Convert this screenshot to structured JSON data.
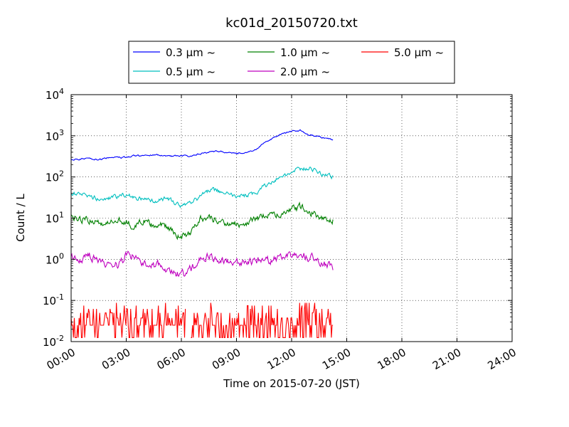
{
  "chart_data": {
    "type": "line",
    "title": "kc01d_20150720.txt",
    "xlabel": "Time on 2015-07-20 (JST)",
    "ylabel": "Count / L",
    "y_scale": "log",
    "ylim": [
      0.01,
      10000
    ],
    "xlim": [
      "00:00",
      "24:00"
    ],
    "x_ticks": [
      "00:00",
      "03:00",
      "06:00",
      "09:00",
      "12:00",
      "15:00",
      "18:00",
      "21:00",
      "24:00"
    ],
    "y_ticks": [
      {
        "base": "10",
        "exp": "-2",
        "value": 0.01
      },
      {
        "base": "10",
        "exp": "-1",
        "value": 0.1
      },
      {
        "base": "10",
        "exp": "0",
        "value": 1
      },
      {
        "base": "10",
        "exp": "1",
        "value": 10
      },
      {
        "base": "10",
        "exp": "2",
        "value": 100
      },
      {
        "base": "10",
        "exp": "3",
        "value": 1000
      },
      {
        "base": "10",
        "exp": "4",
        "value": 10000
      }
    ],
    "grid": true,
    "legend_position": "top",
    "series": [
      {
        "name": "0.3 μm ~",
        "color": "#0000ff",
        "x": [
          "00:00",
          "00:30",
          "01:00",
          "01:30",
          "02:00",
          "02:30",
          "03:00",
          "03:30",
          "04:00",
          "04:30",
          "05:00",
          "05:30",
          "06:00",
          "06:30",
          "07:00",
          "07:30",
          "08:00",
          "08:30",
          "09:00",
          "09:30",
          "10:00",
          "10:30",
          "11:00",
          "11:30",
          "12:00",
          "12:30",
          "13:00",
          "13:30",
          "14:00",
          "14:15"
        ],
        "values": [
          260,
          270,
          280,
          260,
          290,
          300,
          300,
          330,
          320,
          350,
          330,
          320,
          330,
          320,
          360,
          400,
          430,
          400,
          370,
          380,
          460,
          650,
          900,
          1100,
          1300,
          1350,
          1050,
          950,
          850,
          780
        ],
        "noise": 0.03
      },
      {
        "name": "0.5 μm ~",
        "color": "#00bfbf",
        "x": [
          "00:00",
          "00:30",
          "01:00",
          "01:30",
          "02:00",
          "02:30",
          "03:00",
          "03:30",
          "04:00",
          "04:30",
          "05:00",
          "05:30",
          "06:00",
          "06:30",
          "07:00",
          "07:30",
          "08:00",
          "08:30",
          "09:00",
          "09:30",
          "10:00",
          "10:30",
          "11:00",
          "11:30",
          "12:00",
          "12:30",
          "13:00",
          "13:30",
          "14:00",
          "14:15"
        ],
        "values": [
          38,
          42,
          34,
          30,
          29,
          32,
          38,
          30,
          28,
          26,
          30,
          26,
          20,
          22,
          32,
          48,
          46,
          38,
          34,
          36,
          38,
          60,
          80,
          100,
          130,
          150,
          175,
          130,
          110,
          100
        ],
        "noise": 0.09
      },
      {
        "name": "1.0 μm ~",
        "color": "#008000",
        "x": [
          "00:00",
          "00:30",
          "01:00",
          "01:30",
          "02:00",
          "02:30",
          "03:00",
          "03:30",
          "04:00",
          "04:30",
          "05:00",
          "05:30",
          "06:00",
          "06:30",
          "07:00",
          "07:30",
          "08:00",
          "08:30",
          "09:00",
          "09:30",
          "10:00",
          "10:30",
          "11:00",
          "11:30",
          "12:00",
          "12:30",
          "13:00",
          "13:30",
          "14:00",
          "14:15"
        ],
        "values": [
          11,
          10,
          9,
          7,
          7,
          9,
          8,
          6,
          9,
          6,
          7,
          4.5,
          3.7,
          4.5,
          10,
          10,
          9,
          7.5,
          7,
          8,
          9,
          11,
          12,
          14,
          16,
          18,
          14,
          11,
          9.5,
          9
        ],
        "noise": 0.14
      },
      {
        "name": "2.0 μm ~",
        "color": "#bf00bf",
        "x": [
          "00:00",
          "00:30",
          "01:00",
          "01:30",
          "02:00",
          "02:30",
          "03:00",
          "03:30",
          "04:00",
          "04:30",
          "05:00",
          "05:30",
          "06:00",
          "06:30",
          "07:00",
          "07:30",
          "08:00",
          "08:30",
          "09:00",
          "09:30",
          "10:00",
          "10:30",
          "11:00",
          "11:30",
          "12:00",
          "12:30",
          "13:00",
          "13:30",
          "14:00",
          "14:15"
        ],
        "values": [
          1.2,
          1.0,
          1.2,
          0.9,
          0.8,
          0.7,
          1.3,
          1.1,
          0.8,
          0.7,
          0.7,
          0.5,
          0.4,
          0.55,
          1.0,
          1.2,
          1.0,
          0.95,
          0.8,
          0.9,
          0.9,
          0.95,
          1.0,
          1.1,
          1.2,
          1.25,
          1.1,
          0.85,
          0.7,
          0.65
        ],
        "noise": 0.16
      },
      {
        "name": "5.0 μm ~",
        "color": "#ff0000",
        "x_start": "00:00",
        "x_end": "14:15",
        "gap": [
          "06:15",
          "06:30"
        ],
        "levels": [
          0.0125,
          0.025,
          0.0375,
          0.05,
          0.0625,
          0.075,
          0.0875
        ],
        "level_weights": [
          0.3,
          0.33,
          0.17,
          0.1,
          0.05,
          0.03,
          0.02
        ]
      }
    ]
  }
}
